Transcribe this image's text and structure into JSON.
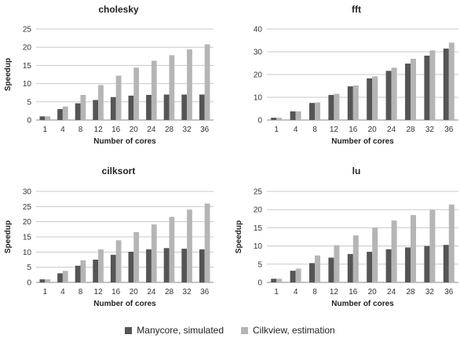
{
  "legend": {
    "series_a": "Manycore, simulated",
    "series_b": "Cilkview, estimation",
    "color_a": "#555555",
    "color_b": "#b5b5b5"
  },
  "chart_data": [
    {
      "type": "bar",
      "title": "cholesky",
      "xlabel": "Number of cores",
      "ylabel": "Speedup",
      "categories": [
        "1",
        "4",
        "8",
        "12",
        "16",
        "20",
        "24",
        "28",
        "32",
        "36"
      ],
      "ylim": [
        0,
        25
      ],
      "yticks": [
        0,
        5,
        10,
        15,
        20,
        25
      ],
      "series": [
        {
          "name": "Manycore, simulated",
          "values": [
            1,
            3,
            4.6,
            5.5,
            6.3,
            6.7,
            6.9,
            7,
            7,
            7
          ]
        },
        {
          "name": "Cilkview, estimation",
          "values": [
            1,
            3.7,
            6.9,
            9.6,
            12.2,
            14.4,
            16.3,
            17.8,
            19.4,
            20.8
          ]
        }
      ]
    },
    {
      "type": "bar",
      "title": "fft",
      "xlabel": "Number of cores",
      "ylabel": "",
      "categories": [
        "1",
        "4",
        "8",
        "12",
        "16",
        "20",
        "24",
        "28",
        "32",
        "36"
      ],
      "ylim": [
        0,
        40
      ],
      "yticks": [
        0,
        10,
        20,
        30,
        40
      ],
      "series": [
        {
          "name": "Manycore, simulated",
          "values": [
            1,
            3.8,
            7.5,
            11,
            14.8,
            18.3,
            21.6,
            24.8,
            28.3,
            31.4
          ]
        },
        {
          "name": "Cilkview, estimation",
          "values": [
            1,
            3.8,
            7.7,
            11.5,
            15.2,
            19.2,
            23,
            26.9,
            30.6,
            34
          ]
        }
      ]
    },
    {
      "type": "bar",
      "title": "cilksort",
      "xlabel": "Number of cores",
      "ylabel": "Speedup",
      "categories": [
        "1",
        "4",
        "8",
        "12",
        "16",
        "20",
        "24",
        "28",
        "32",
        "36"
      ],
      "ylim": [
        0,
        30
      ],
      "yticks": [
        0,
        5,
        10,
        15,
        20,
        25,
        30
      ],
      "series": [
        {
          "name": "Manycore, simulated",
          "values": [
            1,
            3,
            5.5,
            7.5,
            9.1,
            10.1,
            10.9,
            11.3,
            11.1,
            10.9
          ]
        },
        {
          "name": "Cilkview, estimation",
          "values": [
            1,
            3.8,
            7.3,
            10.9,
            13.9,
            16.6,
            19.1,
            21.6,
            24,
            26
          ]
        }
      ]
    },
    {
      "type": "bar",
      "title": "lu",
      "xlabel": "Number of cores",
      "ylabel": "Speedup",
      "categories": [
        "1",
        "4",
        "8",
        "12",
        "16",
        "20",
        "24",
        "28",
        "32",
        "36"
      ],
      "ylim": [
        0,
        25
      ],
      "yticks": [
        0,
        5,
        10,
        15,
        20,
        25
      ],
      "series": [
        {
          "name": "Manycore, simulated",
          "values": [
            1,
            3.2,
            5.3,
            6.8,
            7.8,
            8.4,
            9.1,
            9.6,
            10,
            10.3
          ]
        },
        {
          "name": "Cilkview, estimation",
          "values": [
            1,
            3.8,
            7.4,
            10.2,
            12.9,
            15,
            17,
            18.5,
            19.9,
            21.4
          ]
        }
      ]
    }
  ]
}
